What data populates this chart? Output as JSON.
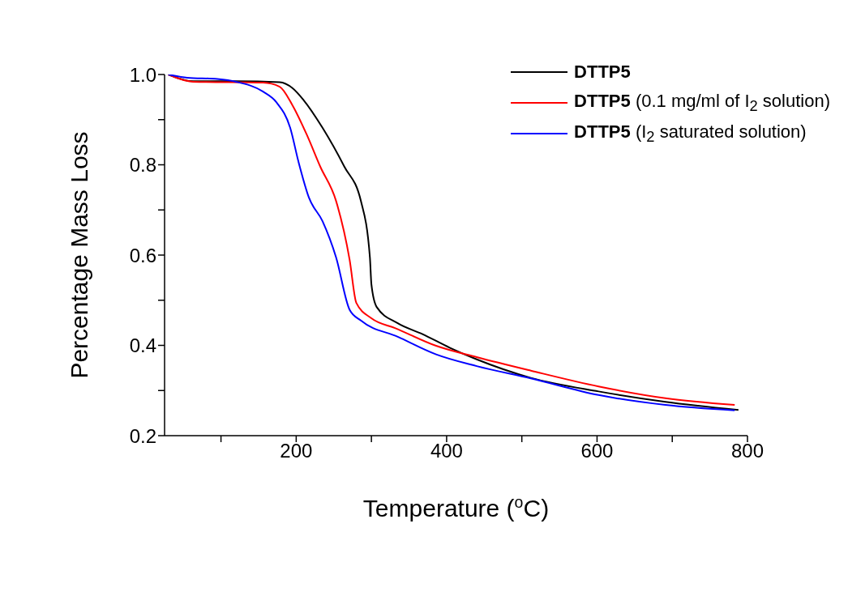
{
  "chart_data": {
    "type": "line",
    "xlabel": "Temperature ($^{o}$C)",
    "ylabel": "Percentage Mass Loss",
    "xlim": [
      25,
      800
    ],
    "ylim": [
      0.2,
      1.0
    ],
    "xticks": [
      {
        "value": 100,
        "label": null
      },
      200,
      {
        "value": 300,
        "label": null
      },
      400,
      {
        "value": 500,
        "label": null
      },
      600,
      {
        "value": 700,
        "label": null
      },
      800
    ],
    "yticks": [
      0.2,
      {
        "value": 0.3,
        "label": null
      },
      0.4,
      {
        "value": 0.5,
        "label": null
      },
      0.6,
      {
        "value": 0.7,
        "label": null
      },
      0.8,
      {
        "value": 0.9,
        "label": null
      },
      {
        "value": 1.0,
        "label": "1.0"
      }
    ],
    "legend": "top right",
    "marker": "none",
    "line_style": "solid",
    "series": [
      {
        "name": "DTTP5",
        "color": "#000000",
        "x": [
          30,
          63,
          120,
          178,
          195,
          210,
          235,
          264,
          286,
          298,
          300,
          307,
          335,
          368,
          404,
          440,
          512,
          602,
          691,
          788
        ],
        "values": [
          1.0,
          0.985,
          0.985,
          0.983,
          0.97,
          0.943,
          0.882,
          0.796,
          0.72,
          0.595,
          0.535,
          0.485,
          0.449,
          0.425,
          0.395,
          0.369,
          0.328,
          0.298,
          0.275,
          0.257
        ]
      },
      {
        "name": "DTTP5 (0.1 mg/ml of I$_{2}$ solution)",
        "color": "#ff0000",
        "x": [
          30,
          63,
          156,
          178,
          195,
          214,
          232,
          253,
          271,
          280,
          300,
          332,
          386,
          440,
          512,
          602,
          691,
          783
        ],
        "values": [
          1.0,
          0.984,
          0.982,
          0.973,
          0.932,
          0.867,
          0.796,
          0.72,
          0.59,
          0.494,
          0.46,
          0.438,
          0.399,
          0.374,
          0.344,
          0.309,
          0.283,
          0.268
        ]
      },
      {
        "name": "DTTP5 (I$_{2}$ saturated solution)",
        "color": "#0000ff",
        "x": [
          30,
          55,
          95,
          120,
          156,
          174,
          192,
          203,
          217,
          235,
          253,
          271,
          286,
          335,
          386,
          440,
          512,
          602,
          691,
          783
        ],
        "values": [
          1.0,
          0.993,
          0.99,
          0.984,
          0.962,
          0.938,
          0.882,
          0.807,
          0.727,
          0.675,
          0.595,
          0.479,
          0.455,
          0.419,
          0.38,
          0.354,
          0.327,
          0.29,
          0.268,
          0.256
        ]
      }
    ]
  }
}
